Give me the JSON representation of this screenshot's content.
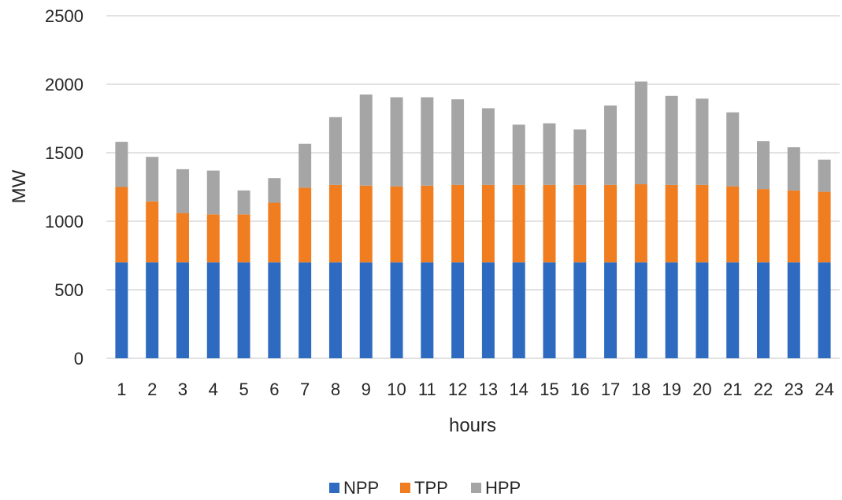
{
  "chart_data": {
    "type": "bar",
    "stacked": true,
    "categories": [
      "1",
      "2",
      "3",
      "4",
      "5",
      "6",
      "7",
      "8",
      "9",
      "10",
      "11",
      "12",
      "13",
      "14",
      "15",
      "16",
      "17",
      "18",
      "19",
      "20",
      "21",
      "22",
      "23",
      "24"
    ],
    "series": [
      {
        "name": "NPP",
        "color": "#2E6BC0",
        "values": [
          700,
          700,
          700,
          700,
          700,
          700,
          700,
          700,
          700,
          700,
          700,
          700,
          700,
          700,
          700,
          700,
          700,
          700,
          700,
          700,
          700,
          700,
          700,
          700
        ]
      },
      {
        "name": "TPP",
        "color": "#F07D20",
        "values": [
          550,
          445,
          360,
          350,
          350,
          435,
          545,
          565,
          560,
          555,
          560,
          565,
          565,
          565,
          565,
          565,
          565,
          570,
          565,
          565,
          555,
          535,
          525,
          515
        ]
      },
      {
        "name": "HPP",
        "color": "#A5A5A5",
        "values": [
          330,
          325,
          320,
          320,
          175,
          180,
          320,
          495,
          665,
          650,
          645,
          625,
          560,
          440,
          450,
          405,
          580,
          750,
          650,
          630,
          540,
          350,
          315,
          235
        ]
      }
    ],
    "xlabel": "hours",
    "ylabel": "MW",
    "ylim": [
      0,
      2500
    ],
    "yticks": [
      "0",
      "500",
      "1000",
      "1500",
      "2000",
      "2500"
    ],
    "grid": true,
    "legend_position": "bottom-center"
  }
}
